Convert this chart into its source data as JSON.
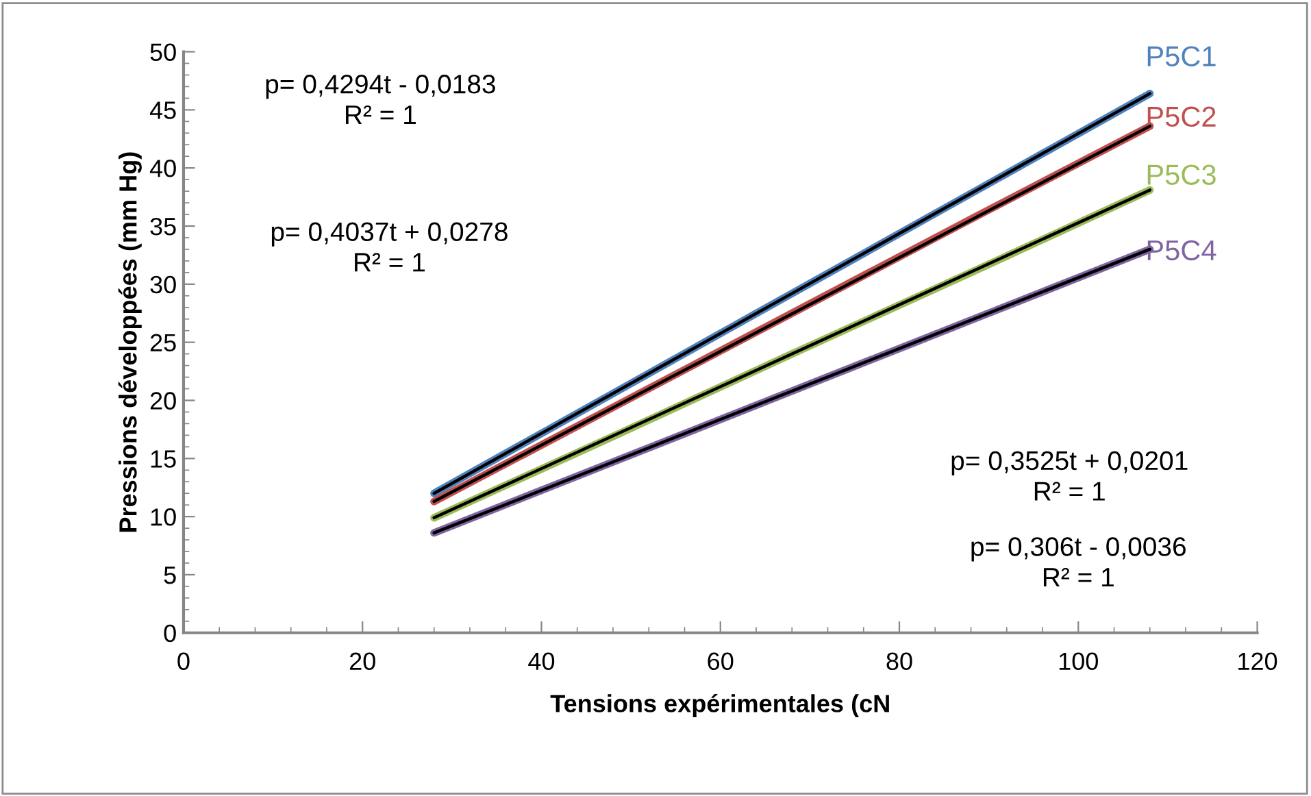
{
  "chart_data": {
    "type": "line",
    "xlabel": "Tensions expérimentales (cN",
    "ylabel": "Pressions développées (mm Hg)",
    "xlim": [
      0,
      120
    ],
    "xticks": [
      0,
      20,
      40,
      60,
      80,
      100,
      120
    ],
    "ylim": [
      0,
      50
    ],
    "yticks": [
      0,
      5,
      10,
      15,
      20,
      25,
      30,
      35,
      40,
      45,
      50
    ],
    "grid": false,
    "legend": false,
    "marker": "none",
    "line_style": "solid",
    "series": [
      {
        "name": "P5C1",
        "color": "#4f81bd",
        "x": [
          28,
          48,
          68,
          88,
          108
        ],
        "values": [
          12.0,
          20.6,
          29.2,
          37.8,
          46.4
        ]
      },
      {
        "name": "P5C2",
        "color": "#c0504d",
        "x": [
          28,
          48,
          68,
          88,
          108
        ],
        "values": [
          11.3,
          19.4,
          27.5,
          35.6,
          43.6
        ]
      },
      {
        "name": "P5C3",
        "color": "#9bbb59",
        "x": [
          28,
          48,
          68,
          88,
          108
        ],
        "values": [
          9.9,
          16.9,
          24.0,
          31.0,
          38.1
        ]
      },
      {
        "name": "P5C4",
        "color": "#8064a2",
        "x": [
          28,
          48,
          68,
          88,
          108
        ],
        "values": [
          8.6,
          14.7,
          20.8,
          26.9,
          33.0
        ]
      },
      {
        "color": "#000000",
        "x": [
          28,
          108
        ],
        "values": [
          12.0,
          46.4
        ]
      },
      {
        "color": "#000000",
        "x": [
          28,
          108
        ],
        "values": [
          11.3,
          43.6
        ]
      },
      {
        "color": "#000000",
        "x": [
          28,
          108
        ],
        "values": [
          9.9,
          38.1
        ]
      },
      {
        "color": "#000000",
        "x": [
          28,
          108
        ],
        "values": [
          8.6,
          33.0
        ]
      }
    ],
    "annotations": [
      "p= 0,4294t - 0,0183\nR² = 1",
      "p= 0,4037t + 0,0278\nR² = 1",
      "p= 0,3525t + 0,0201\nR² = 1",
      "p= 0,306t - 0,0036\nR² = 1"
    ]
  }
}
